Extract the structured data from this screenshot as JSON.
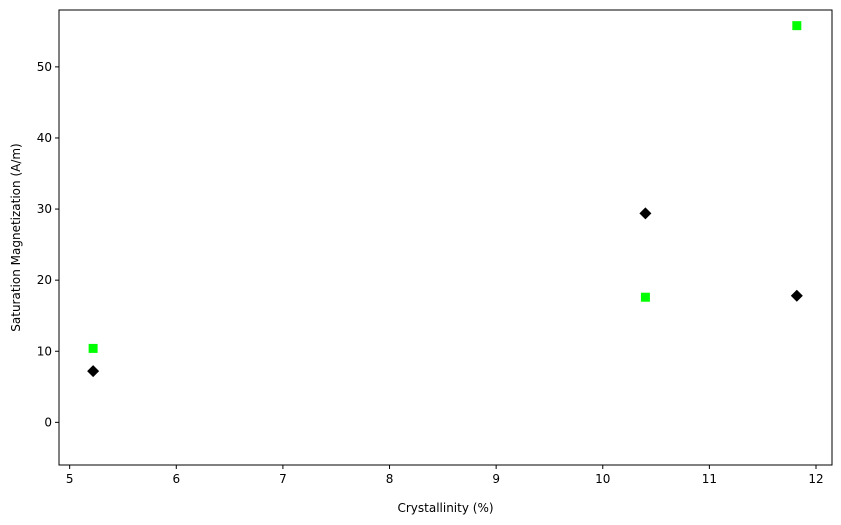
{
  "chart_data": {
    "type": "scatter",
    "title": "",
    "xlabel": "Crystallinity (%)",
    "ylabel": "Saturation Magnetization (A/m)",
    "xlim": [
      4.9,
      12.15
    ],
    "ylim": [
      -6,
      58
    ],
    "xticks": [
      5,
      6,
      7,
      8,
      9,
      10,
      11,
      12
    ],
    "yticks": [
      0,
      10,
      20,
      30,
      40,
      50
    ],
    "grid": false,
    "legend": "none",
    "series": [
      {
        "marker": "square",
        "color": "#00ff00",
        "points": [
          {
            "x": 5.22,
            "y": 10.4
          },
          {
            "x": 10.4,
            "y": 17.6
          },
          {
            "x": 11.82,
            "y": 55.8
          }
        ]
      },
      {
        "marker": "diamond",
        "color": "#000000",
        "points": [
          {
            "x": 5.22,
            "y": 7.2
          },
          {
            "x": 10.4,
            "y": 29.4
          },
          {
            "x": 11.82,
            "y": 17.8
          }
        ]
      }
    ]
  }
}
